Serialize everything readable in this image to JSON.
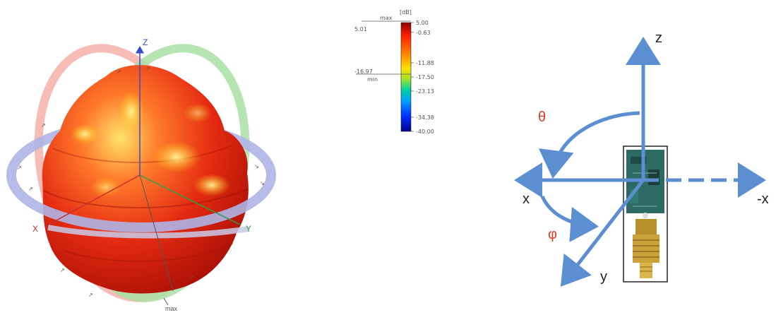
{
  "radiation_pattern": {
    "axis_labels": {
      "z": "Z",
      "x": "X",
      "y": "Y"
    },
    "max_label": "max",
    "colors": {
      "body": "#e62a14",
      "highlight": "#ffd23a",
      "ring_red": "#f4b0a8",
      "ring_green": "#a9e0a4",
      "ring_blue": "#aeb4e6"
    }
  },
  "colorbar": {
    "unit": "[dB]",
    "max_marker": {
      "name": "max",
      "value": "5.01"
    },
    "min_marker": {
      "name": "min",
      "value": "-16.97"
    },
    "ticks": [
      "5.00",
      "-0.63",
      "-11.88",
      "-17.50",
      "-23.13",
      "-34.38",
      "-40.00"
    ],
    "gradient": [
      "#8b0000",
      "#ff2000",
      "#ff8c00",
      "#ffe000",
      "#9be52e",
      "#00d0a0",
      "#00a0ff",
      "#0030ff",
      "#00008b"
    ]
  },
  "coordinate_system": {
    "labels": {
      "z": "z",
      "x": "x",
      "neg_x": "-x",
      "y": "y",
      "theta": "θ",
      "phi": "φ"
    },
    "colors": {
      "axis": "#5b8fd1",
      "angle_symbol": "#e03a2a",
      "label": "#222222"
    }
  }
}
